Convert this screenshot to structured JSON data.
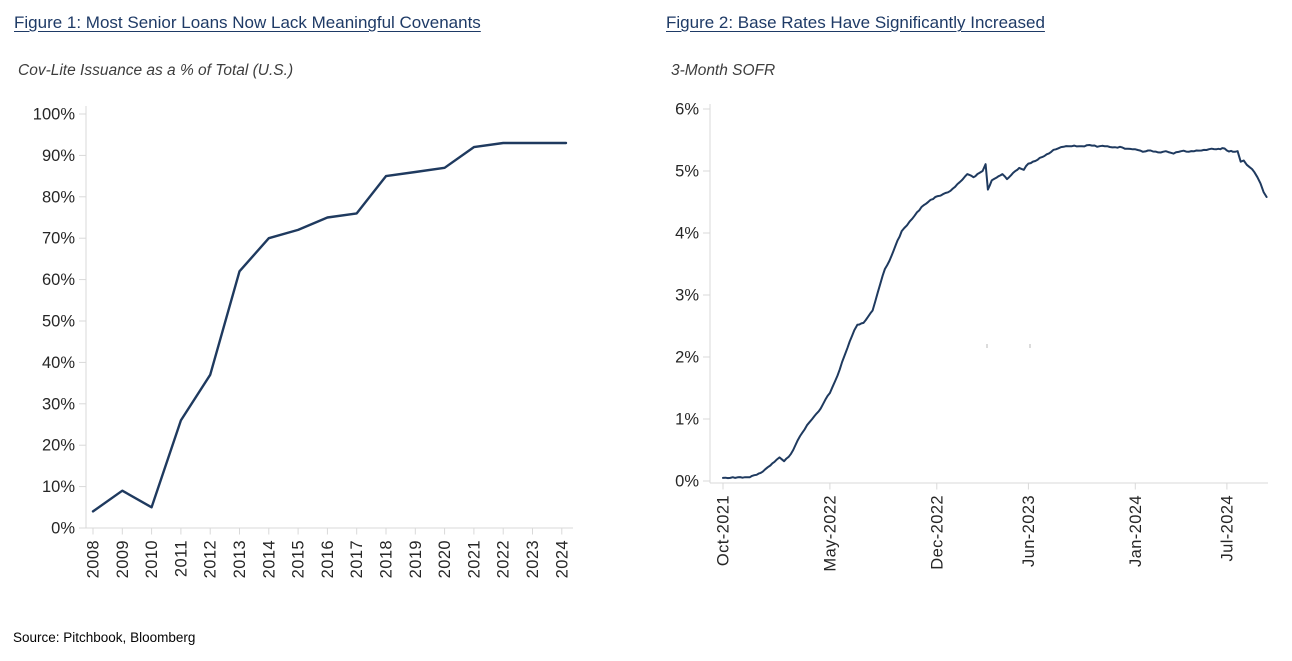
{
  "chart_data": [
    {
      "id": "figure-1",
      "type": "line",
      "title": "Figure 1: Most Senior Loans Now Lack Meaningful Covenants",
      "subtitle": "Cov-Lite Issuance as a % of Total (U.S.)",
      "categories": [
        "2008",
        "2009",
        "2010",
        "2011",
        "2012",
        "2013",
        "2014",
        "2015",
        "2016",
        "2017",
        "2018",
        "2019",
        "2020",
        "2021",
        "2022",
        "2023",
        "2024"
      ],
      "values": [
        4,
        9,
        5,
        26,
        37,
        62,
        70,
        72,
        75,
        76,
        85,
        86,
        87,
        92,
        93,
        93,
        93
      ],
      "unit": "%",
      "ylim": [
        0,
        100
      ],
      "ytick_values": [
        0,
        10,
        20,
        30,
        40,
        50,
        60,
        70,
        80,
        90,
        100
      ],
      "ytick_labels": [
        "0%",
        "10%",
        "20%",
        "30%",
        "40%",
        "50%",
        "60%",
        "70%",
        "80%",
        "90%",
        "100%"
      ],
      "grid": false,
      "legend": "none"
    },
    {
      "id": "figure-2",
      "type": "line",
      "title": "Figure 2: Base Rates Have Significantly Increased",
      "subtitle": "3-Month SOFR",
      "x_unit": "months since Oct-2021",
      "points": [
        [
          0,
          0.05
        ],
        [
          0.8,
          0.05
        ],
        [
          1.6,
          0.06
        ],
        [
          2.2,
          0.1
        ],
        [
          2.6,
          0.15
        ],
        [
          3.1,
          0.25
        ],
        [
          3.5,
          0.34
        ],
        [
          3.7,
          0.38
        ],
        [
          4.0,
          0.32
        ],
        [
          4.3,
          0.39
        ],
        [
          4.6,
          0.5
        ],
        [
          4.9,
          0.66
        ],
        [
          5.5,
          0.9
        ],
        [
          6.0,
          1.05
        ],
        [
          6.4,
          1.17
        ],
        [
          6.7,
          1.31
        ],
        [
          7.0,
          1.42
        ],
        [
          7.5,
          1.7
        ],
        [
          7.8,
          1.92
        ],
        [
          8.0,
          2.05
        ],
        [
          8.3,
          2.25
        ],
        [
          8.6,
          2.43
        ],
        [
          8.8,
          2.52
        ],
        [
          9.2,
          2.55
        ],
        [
          9.5,
          2.65
        ],
        [
          9.8,
          2.75
        ],
        [
          10.3,
          3.18
        ],
        [
          10.6,
          3.42
        ],
        [
          10.9,
          3.55
        ],
        [
          11.3,
          3.8
        ],
        [
          11.7,
          4.03
        ],
        [
          12.4,
          4.23
        ],
        [
          13.0,
          4.42
        ],
        [
          13.9,
          4.58
        ],
        [
          14.9,
          4.68
        ],
        [
          15.5,
          4.82
        ],
        [
          16.0,
          4.95
        ],
        [
          16.4,
          4.9
        ],
        [
          16.8,
          4.97
        ],
        [
          17.0,
          5.0
        ],
        [
          17.2,
          5.11
        ],
        [
          17.35,
          4.7
        ],
        [
          17.6,
          4.85
        ],
        [
          17.9,
          4.89
        ],
        [
          18.3,
          4.95
        ],
        [
          18.6,
          4.87
        ],
        [
          19.0,
          4.97
        ],
        [
          19.4,
          5.05
        ],
        [
          19.7,
          5.02
        ],
        [
          20.0,
          5.12
        ],
        [
          20.6,
          5.18
        ],
        [
          21.2,
          5.27
        ],
        [
          21.8,
          5.35
        ],
        [
          22.3,
          5.39
        ],
        [
          23.0,
          5.41
        ],
        [
          23.5,
          5.4
        ],
        [
          24.0,
          5.42
        ],
        [
          24.5,
          5.39
        ],
        [
          25.0,
          5.4
        ],
        [
          25.5,
          5.38
        ],
        [
          26.0,
          5.39
        ],
        [
          26.5,
          5.36
        ],
        [
          27.0,
          5.35
        ],
        [
          27.5,
          5.31
        ],
        [
          28.0,
          5.33
        ],
        [
          28.5,
          5.3
        ],
        [
          29.0,
          5.32
        ],
        [
          29.5,
          5.28
        ],
        [
          30.0,
          5.32
        ],
        [
          30.5,
          5.31
        ],
        [
          31.0,
          5.33
        ],
        [
          31.5,
          5.34
        ],
        [
          32.0,
          5.36
        ],
        [
          32.3,
          5.35
        ],
        [
          32.7,
          5.37
        ],
        [
          33.0,
          5.33
        ],
        [
          33.4,
          5.31
        ],
        [
          33.7,
          5.32
        ],
        [
          33.9,
          5.15
        ],
        [
          34.1,
          5.17
        ],
        [
          34.3,
          5.1
        ],
        [
          34.5,
          5.06
        ],
        [
          34.8,
          4.98
        ],
        [
          35.0,
          4.9
        ],
        [
          35.2,
          4.8
        ],
        [
          35.4,
          4.66
        ],
        [
          35.6,
          4.58
        ]
      ],
      "xticks": [
        {
          "t": 0,
          "label": "Oct-2021"
        },
        {
          "t": 7,
          "label": "May-2022"
        },
        {
          "t": 14,
          "label": "Dec-2022"
        },
        {
          "t": 20,
          "label": "Jun-2023"
        },
        {
          "t": 27,
          "label": "Jan-2024"
        },
        {
          "t": 33,
          "label": "Jul-2024"
        }
      ],
      "unit": "%",
      "ylim": [
        0,
        6
      ],
      "ytick_values": [
        0,
        1,
        2,
        3,
        4,
        5,
        6
      ],
      "ytick_labels": [
        "0%",
        "1%",
        "2%",
        "3%",
        "4%",
        "5%",
        "6%"
      ],
      "grid": false,
      "legend": "none"
    }
  ],
  "footer": {
    "source_note": "Source: Pitchbook, Bloomberg"
  },
  "colors": {
    "series_line": "#1f3a5f",
    "figure_title": "#1e3a66",
    "axis_line": "#d9d9d9",
    "tick_label": "#262626",
    "subtitle_text": "#3d3d3d",
    "source_text": "#050505"
  }
}
